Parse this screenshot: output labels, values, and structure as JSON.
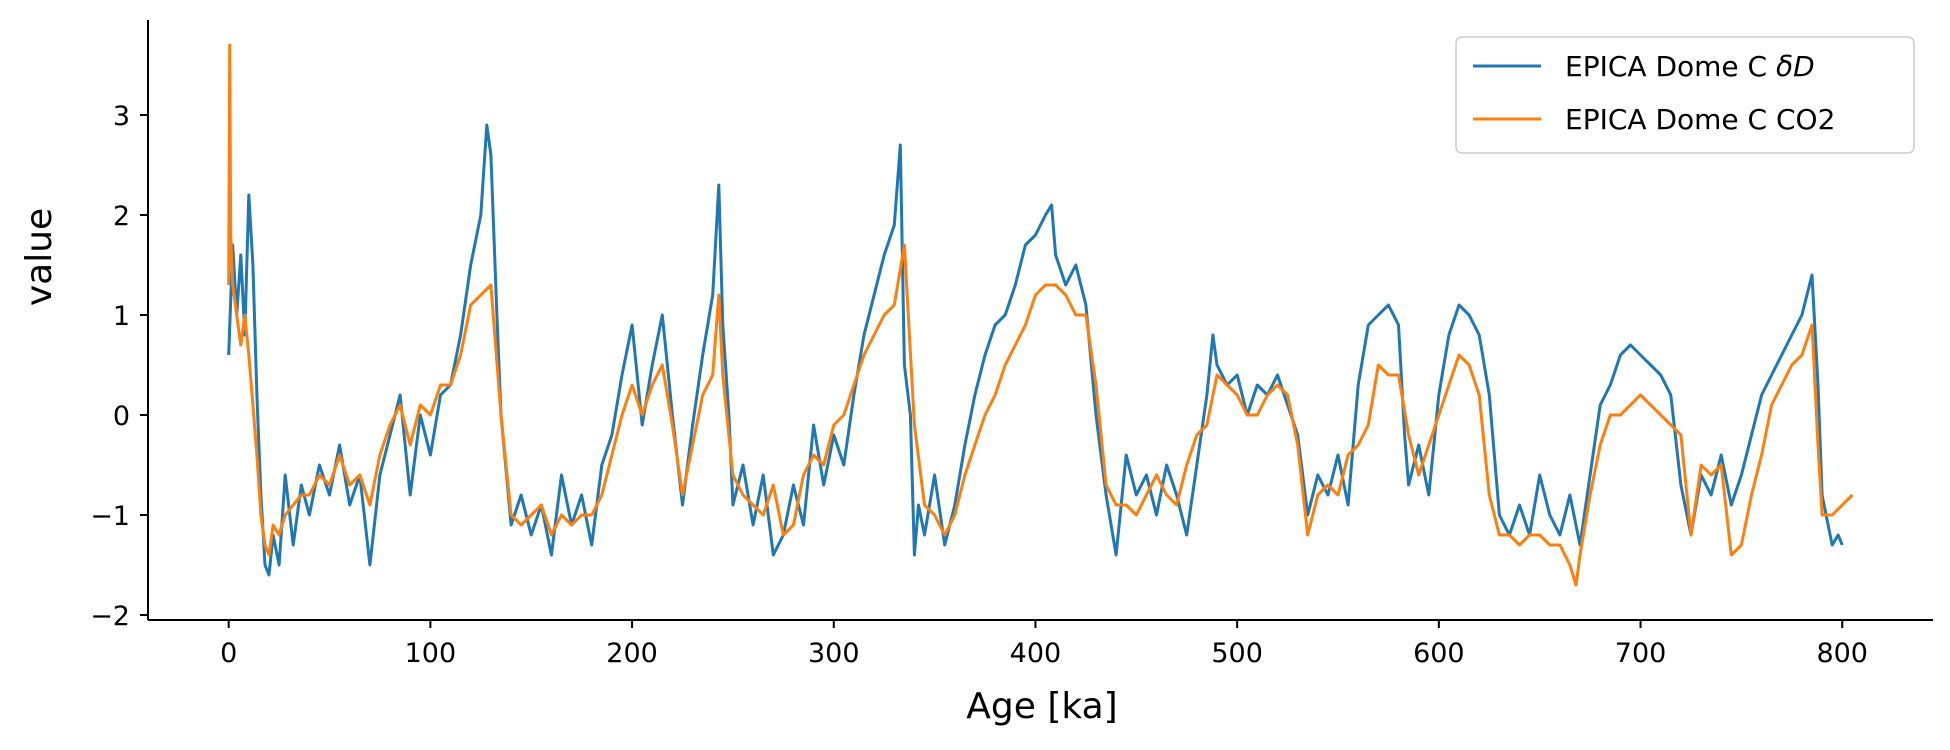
{
  "chart_data": {
    "type": "line",
    "title": "",
    "xlabel": "Age [ka]",
    "ylabel": "value",
    "xlim": [
      -40,
      845
    ],
    "ylim": [
      -2.05,
      3.95
    ],
    "x_ticks": [
      0,
      100,
      200,
      300,
      400,
      500,
      600,
      700,
      800
    ],
    "y_ticks": [
      -2,
      -1,
      0,
      1,
      2,
      3
    ],
    "x_tick_labels": [
      "0",
      "100",
      "200",
      "300",
      "400",
      "500",
      "600",
      "700",
      "800"
    ],
    "y_tick_labels": [
      "−2",
      "−1",
      "0",
      "1",
      "2",
      "3"
    ],
    "grid": false,
    "legend_position": "top-right",
    "legend": {
      "dD_prefix": "EPICA Dome C ",
      "dD_symbol": "δD",
      "co2": "EPICA Dome C CO2"
    },
    "series": [
      {
        "name": "EPICA Dome C δD",
        "color": "#1f77b4",
        "x": [
          0,
          2,
          4,
          6,
          8,
          10,
          12,
          14,
          16,
          18,
          20,
          22,
          25,
          28,
          32,
          36,
          40,
          45,
          50,
          55,
          60,
          65,
          70,
          75,
          80,
          85,
          90,
          95,
          100,
          105,
          110,
          115,
          120,
          125,
          128,
          130,
          133,
          135,
          140,
          145,
          150,
          155,
          160,
          165,
          170,
          175,
          180,
          185,
          190,
          195,
          200,
          205,
          210,
          215,
          220,
          225,
          230,
          235,
          240,
          243,
          245,
          248,
          250,
          255,
          260,
          265,
          270,
          275,
          280,
          285,
          290,
          295,
          300,
          305,
          310,
          315,
          320,
          325,
          330,
          333,
          335,
          338,
          340,
          342,
          345,
          350,
          355,
          360,
          365,
          370,
          375,
          380,
          385,
          390,
          395,
          400,
          405,
          408,
          410,
          415,
          420,
          425,
          430,
          435,
          440,
          445,
          450,
          455,
          460,
          465,
          470,
          475,
          480,
          485,
          488,
          490,
          495,
          500,
          505,
          510,
          515,
          520,
          525,
          530,
          535,
          540,
          545,
          550,
          555,
          560,
          565,
          570,
          575,
          580,
          583,
          585,
          590,
          595,
          600,
          605,
          610,
          615,
          620,
          625,
          630,
          635,
          640,
          645,
          650,
          655,
          660,
          665,
          670,
          675,
          680,
          685,
          690,
          695,
          700,
          705,
          710,
          715,
          720,
          725,
          730,
          735,
          740,
          745,
          750,
          755,
          760,
          765,
          770,
          775,
          780,
          785,
          788,
          790,
          793,
          795,
          798,
          800
        ],
        "values": [
          0.6,
          1.7,
          1.0,
          1.6,
          0.8,
          2.2,
          1.5,
          0.2,
          -0.8,
          -1.5,
          -1.6,
          -1.2,
          -1.5,
          -0.6,
          -1.3,
          -0.7,
          -1.0,
          -0.5,
          -0.8,
          -0.3,
          -0.9,
          -0.6,
          -1.5,
          -0.6,
          -0.2,
          0.2,
          -0.8,
          0.0,
          -0.4,
          0.2,
          0.3,
          0.8,
          1.5,
          2.0,
          2.9,
          2.6,
          1.0,
          0.0,
          -1.1,
          -0.8,
          -1.2,
          -0.9,
          -1.4,
          -0.6,
          -1.1,
          -0.8,
          -1.3,
          -0.5,
          -0.2,
          0.4,
          0.9,
          -0.1,
          0.5,
          1.0,
          0.0,
          -0.9,
          -0.1,
          0.6,
          1.2,
          2.3,
          0.9,
          0.0,
          -0.9,
          -0.5,
          -1.1,
          -0.6,
          -1.4,
          -1.2,
          -0.7,
          -1.1,
          -0.1,
          -0.7,
          -0.2,
          -0.5,
          0.2,
          0.8,
          1.2,
          1.6,
          1.9,
          2.7,
          0.5,
          0.0,
          -1.4,
          -0.9,
          -1.2,
          -0.6,
          -1.3,
          -0.9,
          -0.3,
          0.2,
          0.6,
          0.9,
          1.0,
          1.3,
          1.7,
          1.8,
          2.0,
          2.1,
          1.6,
          1.3,
          1.5,
          1.1,
          0.0,
          -0.8,
          -1.4,
          -0.4,
          -0.8,
          -0.6,
          -1.0,
          -0.5,
          -0.8,
          -1.2,
          -0.5,
          0.2,
          0.8,
          0.5,
          0.3,
          0.4,
          0.0,
          0.3,
          0.2,
          0.4,
          0.1,
          -0.2,
          -1.0,
          -0.6,
          -0.8,
          -0.4,
          -0.9,
          0.3,
          0.9,
          1.0,
          1.1,
          0.9,
          -0.2,
          -0.7,
          -0.3,
          -0.8,
          0.2,
          0.8,
          1.1,
          1.0,
          0.8,
          0.2,
          -1.0,
          -1.2,
          -0.9,
          -1.2,
          -0.6,
          -1.0,
          -1.2,
          -0.8,
          -1.3,
          -0.6,
          0.1,
          0.3,
          0.6,
          0.7,
          0.6,
          0.5,
          0.4,
          0.2,
          -0.7,
          -1.2,
          -0.6,
          -0.8,
          -0.4,
          -0.9,
          -0.6,
          -0.2,
          0.2,
          0.4,
          0.6,
          0.8,
          1.0,
          1.4,
          0.3,
          -0.8,
          -1.1,
          -1.3,
          -1.2,
          -1.3
        ]
      },
      {
        "name": "EPICA Dome C CO2",
        "color": "#ff7f0e",
        "x": [
          0,
          0.5,
          1,
          2,
          4,
          6,
          8,
          10,
          12,
          14,
          16,
          18,
          20,
          22,
          25,
          28,
          32,
          36,
          40,
          45,
          50,
          55,
          60,
          65,
          70,
          75,
          80,
          85,
          90,
          95,
          100,
          105,
          110,
          115,
          120,
          125,
          130,
          135,
          140,
          145,
          150,
          155,
          160,
          165,
          170,
          175,
          180,
          185,
          190,
          195,
          200,
          205,
          210,
          215,
          220,
          225,
          230,
          235,
          240,
          243,
          245,
          250,
          255,
          260,
          265,
          270,
          275,
          280,
          285,
          290,
          295,
          300,
          305,
          310,
          315,
          320,
          325,
          330,
          335,
          340,
          345,
          350,
          355,
          360,
          365,
          370,
          375,
          380,
          385,
          390,
          395,
          400,
          405,
          410,
          415,
          420,
          425,
          430,
          435,
          440,
          445,
          450,
          455,
          460,
          465,
          470,
          475,
          480,
          485,
          490,
          495,
          500,
          505,
          510,
          515,
          520,
          525,
          530,
          535,
          540,
          545,
          550,
          555,
          560,
          565,
          570,
          575,
          580,
          585,
          590,
          595,
          600,
          605,
          610,
          615,
          620,
          625,
          630,
          635,
          640,
          645,
          650,
          655,
          660,
          665,
          668,
          670,
          675,
          680,
          685,
          690,
          695,
          700,
          705,
          710,
          715,
          720,
          725,
          730,
          735,
          740,
          745,
          750,
          755,
          760,
          765,
          770,
          775,
          780,
          785,
          788,
          790,
          795,
          800,
          805
        ],
        "values": [
          1.3,
          3.7,
          1.8,
          1.3,
          1.0,
          0.7,
          1.0,
          0.6,
          0.1,
          -0.4,
          -1.0,
          -1.3,
          -1.4,
          -1.1,
          -1.2,
          -1.0,
          -0.9,
          -0.8,
          -0.8,
          -0.6,
          -0.7,
          -0.4,
          -0.7,
          -0.6,
          -0.9,
          -0.4,
          -0.1,
          0.1,
          -0.3,
          0.1,
          0.0,
          0.3,
          0.3,
          0.6,
          1.1,
          1.2,
          1.3,
          0.0,
          -1.0,
          -1.1,
          -1.0,
          -0.9,
          -1.2,
          -1.0,
          -1.1,
          -1.0,
          -1.0,
          -0.8,
          -0.4,
          0.0,
          0.3,
          0.0,
          0.3,
          0.5,
          -0.1,
          -0.8,
          -0.3,
          0.2,
          0.4,
          1.2,
          0.4,
          -0.6,
          -0.8,
          -0.9,
          -1.0,
          -0.7,
          -1.2,
          -1.1,
          -0.6,
          -0.4,
          -0.5,
          -0.1,
          0.0,
          0.3,
          0.6,
          0.8,
          1.0,
          1.1,
          1.7,
          -0.1,
          -0.9,
          -1.0,
          -1.2,
          -1.0,
          -0.6,
          -0.3,
          0.0,
          0.2,
          0.5,
          0.7,
          0.9,
          1.2,
          1.3,
          1.3,
          1.2,
          1.0,
          1.0,
          0.3,
          -0.7,
          -0.9,
          -0.9,
          -1.0,
          -0.8,
          -0.6,
          -0.8,
          -0.9,
          -0.5,
          -0.2,
          -0.1,
          0.4,
          0.3,
          0.2,
          0.0,
          0.0,
          0.2,
          0.3,
          0.2,
          -0.3,
          -1.2,
          -0.8,
          -0.7,
          -0.8,
          -0.4,
          -0.3,
          -0.1,
          0.5,
          0.4,
          0.4,
          -0.2,
          -0.6,
          -0.3,
          0.0,
          0.3,
          0.6,
          0.5,
          0.2,
          -0.8,
          -1.2,
          -1.2,
          -1.3,
          -1.2,
          -1.2,
          -1.3,
          -1.3,
          -1.5,
          -1.7,
          -1.4,
          -0.8,
          -0.3,
          0.0,
          0.0,
          0.1,
          0.2,
          0.1,
          0.0,
          -0.1,
          -0.2,
          -1.2,
          -0.5,
          -0.6,
          -0.5,
          -1.4,
          -1.3,
          -0.8,
          -0.4,
          0.1,
          0.3,
          0.5,
          0.6,
          0.9,
          -0.3,
          -1.0,
          -1.0,
          -0.9,
          -0.8
        ]
      }
    ]
  }
}
